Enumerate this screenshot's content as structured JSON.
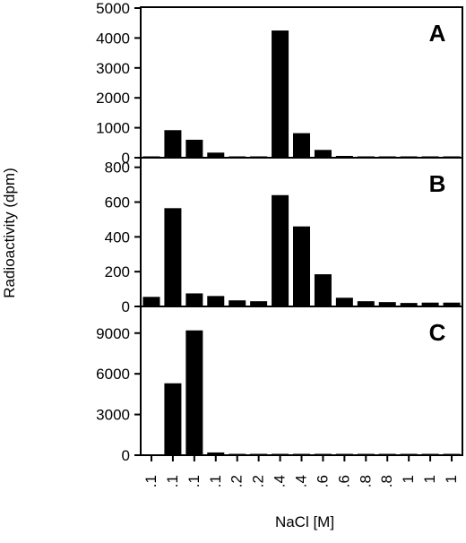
{
  "figure": {
    "ylabel": "Radioactivity (dpm)",
    "xlabel": "NaCl [M]",
    "categories": [
      ".1",
      ".1",
      ".1",
      ".1",
      ".2",
      ".2",
      ".4",
      ".4",
      ".6",
      ".6",
      ".8",
      ".8",
      "1",
      "1",
      "1"
    ]
  },
  "chart_data": [
    {
      "type": "bar",
      "panel": "A",
      "categories": [
        ".1",
        ".1",
        ".1",
        ".1",
        ".2",
        ".2",
        ".4",
        ".4",
        ".6",
        ".6",
        ".8",
        ".8",
        "1",
        "1",
        "1"
      ],
      "values": [
        40,
        920,
        600,
        170,
        40,
        40,
        4250,
        820,
        260,
        60,
        25,
        15,
        15,
        10,
        10
      ],
      "ylim": [
        0,
        5000
      ],
      "yticks": [
        0,
        1000,
        2000,
        3000,
        4000,
        5000
      ]
    },
    {
      "type": "bar",
      "panel": "B",
      "categories": [
        ".1",
        ".1",
        ".1",
        ".1",
        ".2",
        ".2",
        ".4",
        ".4",
        ".6",
        ".6",
        ".8",
        ".8",
        "1",
        "1",
        "1"
      ],
      "values": [
        55,
        565,
        75,
        60,
        35,
        30,
        640,
        460,
        185,
        50,
        30,
        25,
        20,
        22,
        22
      ],
      "ylim": [
        0,
        850
      ],
      "yticks": [
        0,
        200,
        400,
        600,
        800
      ]
    },
    {
      "type": "bar",
      "panel": "C",
      "categories": [
        ".1",
        ".1",
        ".1",
        ".1",
        ".2",
        ".2",
        ".4",
        ".4",
        ".6",
        ".6",
        ".8",
        ".8",
        "1",
        "1",
        "1"
      ],
      "values": [
        0,
        5300,
        9200,
        200,
        40,
        30,
        30,
        30,
        30,
        30,
        20,
        20,
        20,
        20,
        20
      ],
      "ylim": [
        0,
        10900
      ],
      "yticks": [
        0,
        3000,
        6000,
        9000
      ]
    }
  ]
}
